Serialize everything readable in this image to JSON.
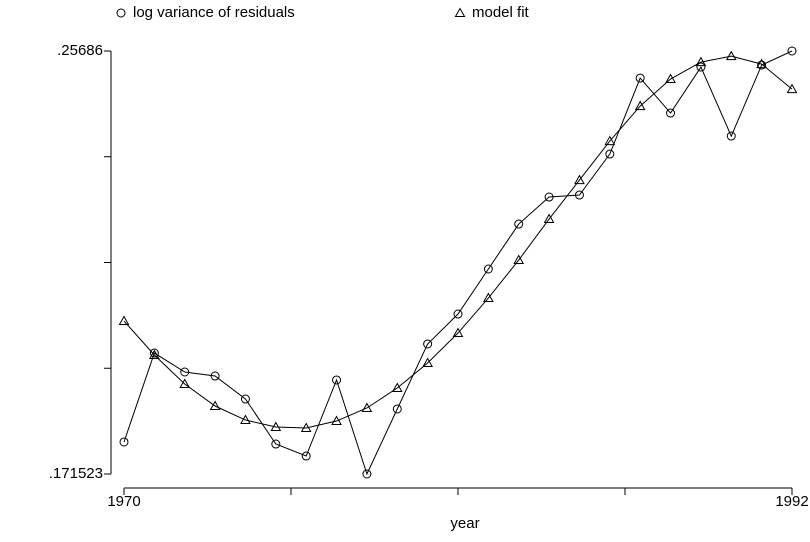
{
  "chart_data": {
    "type": "line",
    "xlabel": "year",
    "x": [
      1970,
      1971,
      1972,
      1973,
      1974,
      1975,
      1976,
      1977,
      1978,
      1979,
      1980,
      1981,
      1982,
      1983,
      1984,
      1985,
      1986,
      1987,
      1988,
      1989,
      1990,
      1991,
      1992
    ],
    "series": [
      {
        "name": "log variance of residuals",
        "color": "#000000",
        "marker": "circle",
        "values": [
          0.17798,
          0.19593,
          0.1921,
          0.19129,
          0.18665,
          0.17757,
          0.17515,
          0.19049,
          0.171523,
          0.18464,
          0.19775,
          0.2038,
          0.21288,
          0.22195,
          0.2274,
          0.2278,
          0.23607,
          0.2514,
          0.24434,
          0.25362,
          0.2397,
          0.25402,
          0.25686
        ]
      },
      {
        "name": "model fit",
        "color": "#000000",
        "marker": "triangle",
        "values": [
          0.20238,
          0.19553,
          0.18968,
          0.18524,
          0.18241,
          0.181,
          0.1808,
          0.18221,
          0.18484,
          0.18887,
          0.19391,
          0.19996,
          0.20702,
          0.21469,
          0.22296,
          0.23082,
          0.23869,
          0.24575,
          0.2512,
          0.25462,
          0.25583,
          0.25422,
          0.24917
        ]
      }
    ],
    "xlim": [
      1970,
      1992
    ],
    "xticks": [
      1970,
      1992
    ],
    "xticks_minor": [
      1975.5,
      1981,
      1986.5
    ],
    "ylim": [
      0.171523,
      0.25686
    ],
    "yticks": [
      {
        "value": 0.171523,
        "label": ".171523"
      },
      {
        "value": 0.25686,
        "label": ".25686"
      }
    ],
    "yticks_minor": [
      0.192857,
      0.214191,
      0.235526
    ],
    "legend": "top"
  }
}
